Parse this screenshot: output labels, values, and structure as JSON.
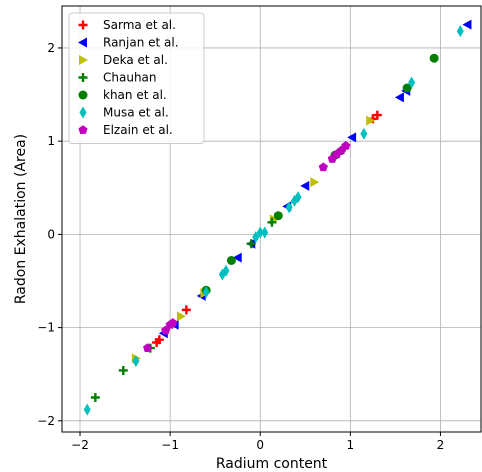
{
  "chart_data": {
    "type": "scatter",
    "title": "",
    "xlabel": "Radium content",
    "ylabel": "Radon Exhalation (Area)",
    "xlim": [
      -2.2,
      2.45
    ],
    "ylim": [
      -2.12,
      2.45
    ],
    "x_ticks": [
      -2,
      -1,
      0,
      1,
      2
    ],
    "y_ticks": [
      -2,
      -1,
      0,
      1,
      2
    ],
    "x_tick_labels": [
      "−2",
      "−1",
      "0",
      "1",
      "2"
    ],
    "y_tick_labels": [
      "−2",
      "−1",
      "0",
      "1",
      "2"
    ],
    "grid": true,
    "legend_position": "top-left",
    "series": [
      {
        "name": "Sarma et al.",
        "marker": "plus",
        "color": "#ff0000",
        "points": [
          [
            -1.12,
            -1.13
          ],
          [
            -1.15,
            -1.16
          ],
          [
            -0.82,
            -0.81
          ],
          [
            1.3,
            1.28
          ],
          [
            1.25,
            1.24
          ]
        ]
      },
      {
        "name": "Ranjan et al.",
        "marker": "triangle-left",
        "color": "#0000ff",
        "points": [
          [
            -1.07,
            -1.06
          ],
          [
            -0.65,
            -0.66
          ],
          [
            -0.25,
            -0.25
          ],
          [
            0.5,
            0.52
          ],
          [
            1.02,
            1.04
          ],
          [
            1.55,
            1.47
          ],
          [
            1.62,
            1.54
          ],
          [
            2.3,
            2.25
          ],
          [
            -0.1,
            -0.1
          ],
          [
            -0.95,
            -0.97
          ],
          [
            0.3,
            0.3
          ]
        ]
      },
      {
        "name": "Deka et al.",
        "marker": "triangle-right",
        "color": "#bfbf00",
        "points": [
          [
            -1.38,
            -1.33
          ],
          [
            -0.88,
            -0.88
          ],
          [
            0.6,
            0.56
          ],
          [
            1.22,
            1.22
          ],
          [
            -0.62,
            -0.63
          ],
          [
            0.15,
            0.16
          ]
        ]
      },
      {
        "name": "Chauhan",
        "marker": "plus",
        "color": "#008000",
        "points": [
          [
            -1.83,
            -1.75
          ],
          [
            -1.52,
            -1.46
          ],
          [
            0.13,
            0.13
          ],
          [
            -1.22,
            -1.22
          ],
          [
            -0.1,
            -0.1
          ],
          [
            0.9,
            0.9
          ]
        ]
      },
      {
        "name": "khan et al.",
        "marker": "circle",
        "color": "#007f00",
        "points": [
          [
            1.93,
            1.89
          ],
          [
            1.63,
            1.57
          ],
          [
            0.2,
            0.2
          ],
          [
            -0.6,
            -0.6
          ],
          [
            -0.32,
            -0.28
          ],
          [
            0.83,
            0.85
          ]
        ]
      },
      {
        "name": "Musa et al.",
        "marker": "thin-diamond",
        "color": "#00bfbf",
        "points": [
          [
            -1.92,
            -1.88
          ],
          [
            -1.38,
            -1.36
          ],
          [
            -0.6,
            -0.62
          ],
          [
            -0.42,
            -0.43
          ],
          [
            -0.38,
            -0.39
          ],
          [
            0.05,
            0.02
          ],
          [
            0.32,
            0.29
          ],
          [
            0.38,
            0.36
          ],
          [
            0.42,
            0.4
          ],
          [
            1.15,
            1.08
          ],
          [
            1.68,
            1.63
          ],
          [
            2.22,
            2.18
          ],
          [
            -0.05,
            -0.03
          ],
          [
            0.0,
            0.02
          ]
        ]
      },
      {
        "name": "Elzain et al.",
        "marker": "pentagon",
        "color": "#bf00bf",
        "points": [
          [
            -1.25,
            -1.22
          ],
          [
            -1.0,
            -0.97
          ],
          [
            0.7,
            0.72
          ],
          [
            0.8,
            0.81
          ],
          [
            0.85,
            0.86
          ],
          [
            0.9,
            0.9
          ],
          [
            0.95,
            0.95
          ],
          [
            -1.05,
            -1.03
          ],
          [
            -0.97,
            -0.95
          ]
        ]
      }
    ]
  }
}
